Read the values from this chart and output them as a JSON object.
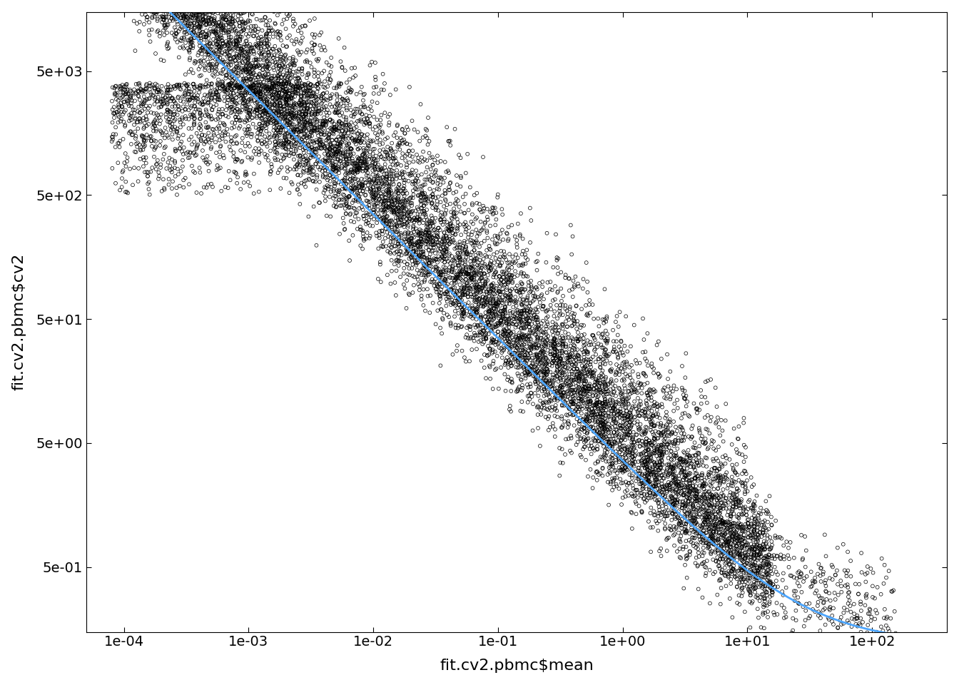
{
  "xlabel": "fit.cv2.pbmc$mean",
  "ylabel": "fit.cv2.pbmc$cv2",
  "x_ticks": [
    0.0001,
    0.001,
    0.01,
    0.1,
    1.0,
    10.0,
    100.0
  ],
  "x_tick_labels": [
    "1e-04",
    "1e-03",
    "1e-02",
    "1e-01",
    "1e+00",
    "1e+01",
    "1e+02"
  ],
  "y_ticks": [
    0.5,
    5.0,
    50.0,
    500.0,
    5000.0
  ],
  "y_tick_labels": [
    "5e-01",
    "5e+00",
    "5e+01",
    "5e+02",
    "5e+03"
  ],
  "xlim": [
    5e-05,
    400.0
  ],
  "ylim": [
    0.15,
    15000
  ],
  "point_color": "black",
  "point_facecolor": "none",
  "point_size": 3.5,
  "point_linewidth": 0.5,
  "line_color": "#4da6ff",
  "line_width": 2.0,
  "background_color": "white",
  "xlabel_fontsize": 16,
  "ylabel_fontsize": 16,
  "tick_fontsize": 14,
  "n_points_main": 8000,
  "n_points_extra": 2000,
  "seed": 123,
  "trend_a": 3.5,
  "trend_b": 1.0,
  "trend_c": 0.12
}
